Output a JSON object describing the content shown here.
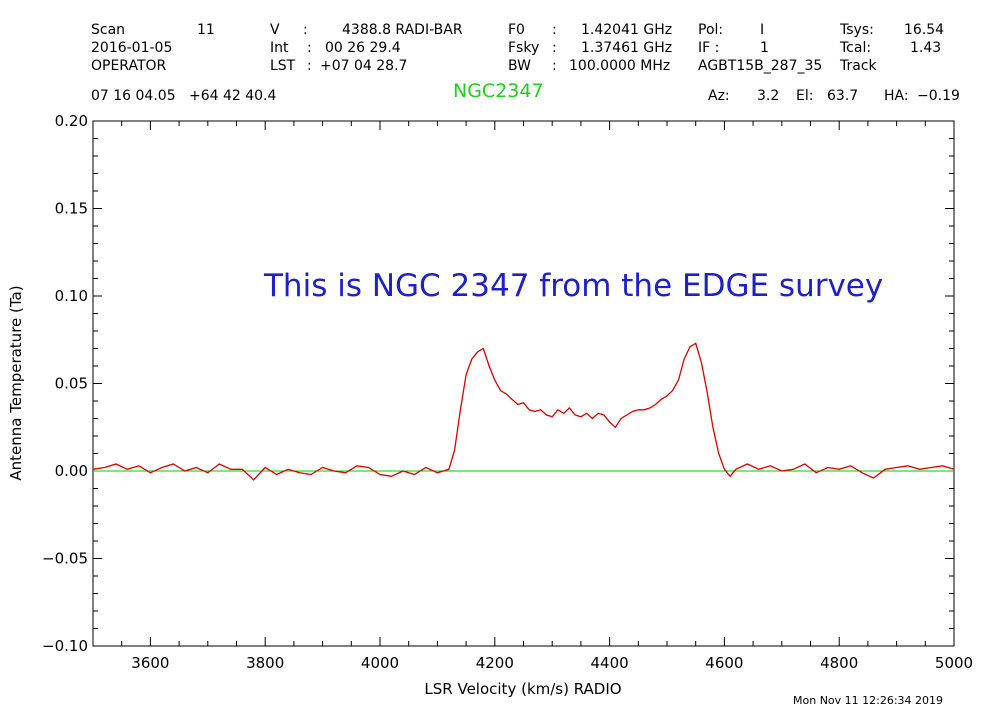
{
  "header": {
    "col1": {
      "scan_label": "Scan",
      "scan_value": "11",
      "date": "2016-01-05",
      "operator": "OPERATOR"
    },
    "col2": {
      "v_label": "V",
      "v_value": "4388.8 RADI-BAR",
      "int_label": "Int",
      "int_value": "00 26 29.4",
      "lst_label": "LST",
      "lst_value": "+07 04 28.7"
    },
    "col3": {
      "f0_label": "F0",
      "f0_value": "1.42041 GHz",
      "fsky_label": "Fsky",
      "fsky_value": "1.37461 GHz",
      "bw_label": "BW",
      "bw_value": "100.0000 MHz"
    },
    "col4": {
      "pol_label": "Pol:",
      "pol_value": "I",
      "if_label": "IF :",
      "if_value": "1",
      "project": "AGBT15B_287_35"
    },
    "col5": {
      "tsys_label": "Tsys:",
      "tsys_value": "16.54",
      "tcal_label": "Tcal:",
      "tcal_value": "1.43",
      "mode": "Track"
    },
    "coords": "07 16 04.05   +64 42 40.4",
    "object": "NGC2347",
    "az_label": "Az:",
    "az_value": "3.2",
    "el_label": "El:",
    "el_value": "63.7",
    "ha_label": "HA:",
    "ha_value": "−0.19",
    "timestamp": "Mon Nov 11 12:26:34 2019"
  },
  "colors": {
    "spectrum": "#dd0000",
    "baseline": "#00cc00",
    "object": "#22cc22",
    "annotation": "#2020c8"
  },
  "chart_data": {
    "type": "line",
    "title": "",
    "xlabel": "LSR Velocity (km/s) RADIO",
    "ylabel": "Antenna Temperature (Ta)",
    "xlim": [
      3500,
      5000
    ],
    "ylim": [
      -0.1,
      0.2
    ],
    "xticks": [
      3600,
      3800,
      4000,
      4200,
      4400,
      4600,
      4800,
      5000
    ],
    "yticks": [
      "0.20",
      "0.15",
      "0.10",
      "0.05",
      "0.00",
      "−0.05",
      "−0.10"
    ],
    "annotation": "This is NGC 2347 from the EDGE survey",
    "baseline": 0.0,
    "series": [
      {
        "values": [
          [
            3500,
            0.001
          ],
          [
            3520,
            0.002
          ],
          [
            3540,
            0.004
          ],
          [
            3560,
            0.001
          ],
          [
            3580,
            0.003
          ],
          [
            3600,
            -0.001
          ],
          [
            3620,
            0.002
          ],
          [
            3640,
            0.004
          ],
          [
            3660,
            0.0
          ],
          [
            3680,
            0.002
          ],
          [
            3700,
            -0.001
          ],
          [
            3720,
            0.004
          ],
          [
            3740,
            0.001
          ],
          [
            3760,
            0.001
          ],
          [
            3780,
            -0.005
          ],
          [
            3800,
            0.002
          ],
          [
            3820,
            -0.002
          ],
          [
            3840,
            0.001
          ],
          [
            3860,
            -0.001
          ],
          [
            3880,
            -0.002
          ],
          [
            3900,
            0.002
          ],
          [
            3920,
            0.0
          ],
          [
            3940,
            -0.001
          ],
          [
            3960,
            0.003
          ],
          [
            3980,
            0.002
          ],
          [
            4000,
            -0.002
          ],
          [
            4020,
            -0.003
          ],
          [
            4040,
            0.0
          ],
          [
            4060,
            -0.002
          ],
          [
            4080,
            0.002
          ],
          [
            4100,
            -0.001
          ],
          [
            4120,
            0.001
          ],
          [
            4130,
            0.012
          ],
          [
            4140,
            0.035
          ],
          [
            4150,
            0.055
          ],
          [
            4160,
            0.064
          ],
          [
            4170,
            0.068
          ],
          [
            4180,
            0.07
          ],
          [
            4190,
            0.06
          ],
          [
            4200,
            0.052
          ],
          [
            4210,
            0.046
          ],
          [
            4220,
            0.044
          ],
          [
            4230,
            0.041
          ],
          [
            4240,
            0.038
          ],
          [
            4250,
            0.039
          ],
          [
            4260,
            0.035
          ],
          [
            4270,
            0.034
          ],
          [
            4280,
            0.035
          ],
          [
            4290,
            0.032
          ],
          [
            4300,
            0.031
          ],
          [
            4310,
            0.035
          ],
          [
            4320,
            0.033
          ],
          [
            4330,
            0.036
          ],
          [
            4340,
            0.032
          ],
          [
            4350,
            0.031
          ],
          [
            4360,
            0.033
          ],
          [
            4370,
            0.03
          ],
          [
            4380,
            0.033
          ],
          [
            4390,
            0.032
          ],
          [
            4400,
            0.028
          ],
          [
            4410,
            0.025
          ],
          [
            4420,
            0.03
          ],
          [
            4430,
            0.032
          ],
          [
            4440,
            0.034
          ],
          [
            4450,
            0.035
          ],
          [
            4460,
            0.035
          ],
          [
            4470,
            0.036
          ],
          [
            4480,
            0.038
          ],
          [
            4490,
            0.041
          ],
          [
            4500,
            0.043
          ],
          [
            4510,
            0.046
          ],
          [
            4520,
            0.052
          ],
          [
            4530,
            0.064
          ],
          [
            4540,
            0.071
          ],
          [
            4550,
            0.073
          ],
          [
            4560,
            0.062
          ],
          [
            4570,
            0.045
          ],
          [
            4580,
            0.025
          ],
          [
            4590,
            0.01
          ],
          [
            4600,
            0.001
          ],
          [
            4610,
            -0.003
          ],
          [
            4620,
            0.001
          ],
          [
            4640,
            0.004
          ],
          [
            4660,
            0.001
          ],
          [
            4680,
            0.003
          ],
          [
            4700,
            0.0
          ],
          [
            4720,
            0.001
          ],
          [
            4740,
            0.004
          ],
          [
            4760,
            -0.001
          ],
          [
            4780,
            0.002
          ],
          [
            4800,
            0.001
          ],
          [
            4820,
            0.003
          ],
          [
            4840,
            -0.001
          ],
          [
            4860,
            -0.004
          ],
          [
            4880,
            0.001
          ],
          [
            4900,
            0.002
          ],
          [
            4920,
            0.003
          ],
          [
            4940,
            0.001
          ],
          [
            4960,
            0.002
          ],
          [
            4980,
            0.003
          ],
          [
            5000,
            0.001
          ]
        ]
      }
    ]
  }
}
